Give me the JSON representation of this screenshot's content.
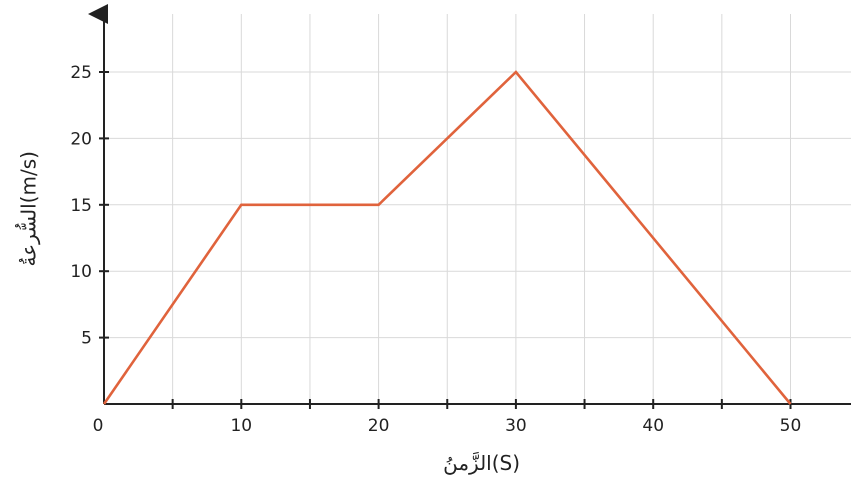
{
  "chart_data": {
    "type": "line",
    "title": "",
    "xlabel": "الزَّمنُ(S)",
    "ylabel": "السُّرعةُ(m/s)",
    "xlim": [
      0,
      55
    ],
    "ylim": [
      0,
      30
    ],
    "x_ticks": [
      0,
      10,
      20,
      30,
      40,
      50
    ],
    "y_ticks": [
      5,
      10,
      15,
      20,
      25
    ],
    "x_minor_ticks": [
      5,
      15,
      25,
      35,
      45
    ],
    "grid": true,
    "legend": "none",
    "series": [
      {
        "color": "#e0633c",
        "x": [
          0,
          10,
          20,
          30,
          50
        ],
        "y": [
          0,
          15,
          15,
          25,
          0
        ]
      }
    ]
  }
}
